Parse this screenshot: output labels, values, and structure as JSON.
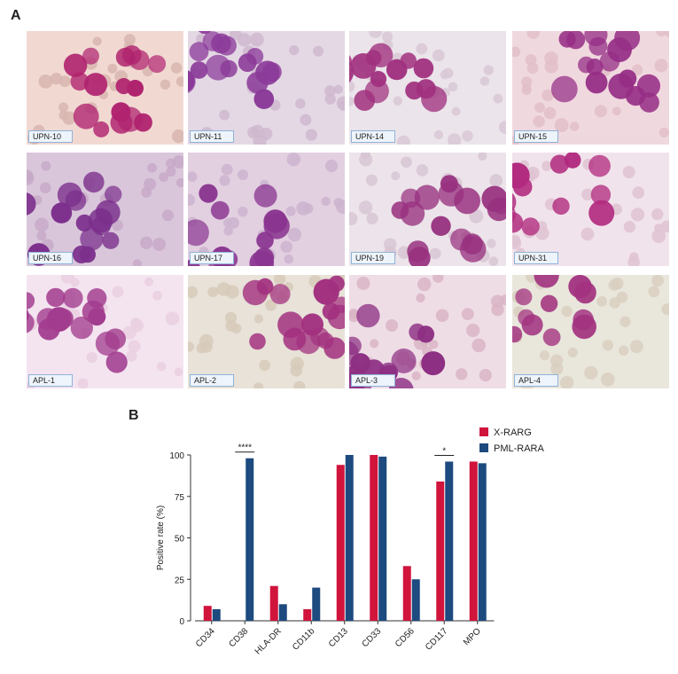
{
  "panels": {
    "a": "A",
    "b": "B"
  },
  "micrographs": [
    {
      "label": "UPN-10",
      "bg": "#f1d9d2",
      "cell": "#b0236f",
      "rbc": "#d8b5b0"
    },
    {
      "label": "UPN-11",
      "bg": "#e4d8e4",
      "cell": "#8b3a99",
      "rbc": "#cfb8cf"
    },
    {
      "label": "UPN-14",
      "bg": "#ebe4ea",
      "cell": "#a0307e",
      "rbc": "#d9c8d6"
    },
    {
      "label": "UPN-15",
      "bg": "#f0d8df",
      "cell": "#962e86",
      "rbc": "#e2bfc9"
    },
    {
      "label": "UPN-16",
      "bg": "#d9c6da",
      "cell": "#7b2f8c",
      "rbc": "#c7a9c8"
    },
    {
      "label": "UPN-17",
      "bg": "#e2cfe0",
      "cell": "#8a3590",
      "rbc": "#cdb4cf"
    },
    {
      "label": "UPN-19",
      "bg": "#ece4ea",
      "cell": "#98317f",
      "rbc": "#d8c6d3"
    },
    {
      "label": "UPN-31",
      "bg": "#f1e3ec",
      "cell": "#b12a7e",
      "rbc": "#dfc3d2"
    },
    {
      "label": "APL-1",
      "bg": "#f4e4f0",
      "cell": "#a23c8e",
      "rbc": "#ead0e2"
    },
    {
      "label": "APL-2",
      "bg": "#e8e2d8",
      "cell": "#a2317f",
      "rbc": "#d7cabb"
    },
    {
      "label": "APL-3",
      "bg": "#efdde6",
      "cell": "#8d2f83",
      "rbc": "#d9b5c4"
    },
    {
      "label": "APL-4",
      "bg": "#e9e6dc",
      "cell": "#a2337f",
      "rbc": "#d9cfc1"
    }
  ],
  "chart_data": {
    "type": "bar",
    "categories": [
      "CD34",
      "CD38",
      "HLA-DR",
      "CD11b",
      "CD13",
      "CD33",
      "CD56",
      "CD117",
      "MPO"
    ],
    "series": [
      {
        "name": "X-RARG",
        "color": "#d0143c",
        "values": [
          9,
          0,
          21,
          7,
          94,
          100,
          33,
          84,
          96
        ]
      },
      {
        "name": "PML-RARA",
        "color": "#1d4a7f",
        "values": [
          7,
          98,
          10,
          20,
          100,
          99,
          25,
          96,
          95
        ]
      }
    ],
    "ylabel": "Positive rate (%)",
    "xlabel": "",
    "ylim": [
      0,
      100
    ],
    "yticks": [
      0,
      25,
      50,
      75,
      100
    ],
    "legend_position": "top-right",
    "annotations": [
      {
        "category": "CD38",
        "text": "****"
      },
      {
        "category": "CD117",
        "text": "*"
      }
    ]
  }
}
